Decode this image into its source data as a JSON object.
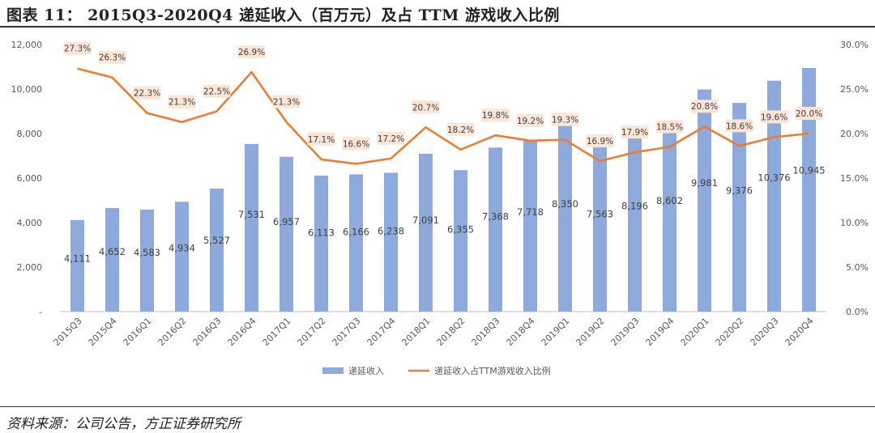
{
  "header": {
    "title": "图表 11： 2015Q3-2020Q4 递延收入（百万元）及占 TTM 游戏收入比例"
  },
  "footer": {
    "source": "资料来源：公司公告，方正证券研究所"
  },
  "chart_data": {
    "type": "bar+line",
    "categories": [
      "2015Q3",
      "2015Q4",
      "2016Q1",
      "2016Q2",
      "2016Q3",
      "2016Q4",
      "2017Q1",
      "2017Q2",
      "2017Q3",
      "2017Q4",
      "2018Q1",
      "2018Q2",
      "2018Q3",
      "2018Q4",
      "2019Q1",
      "2019Q2",
      "2019Q3",
      "2019Q4",
      "2020Q1",
      "2020Q2",
      "2020Q3",
      "2020Q4"
    ],
    "series": [
      {
        "name": "递延收入",
        "type": "bar",
        "axis": "left",
        "color": "#8EA9DB",
        "values": [
          4111,
          4652,
          4583,
          4934,
          5527,
          7531,
          6957,
          6113,
          6166,
          6238,
          7091,
          6355,
          7368,
          7718,
          8350,
          7563,
          8196,
          8602,
          9981,
          9376,
          10376,
          10945
        ],
        "labels": [
          "4,111",
          "4,652",
          "4,583",
          "4,934",
          "5,527",
          "7,531",
          "6,957",
          "6,113",
          "6,166",
          "6,238",
          "7,091",
          "6,355",
          "7,368",
          "7,718",
          "8,350",
          "7,563",
          "8,196",
          "8,602",
          "9,981",
          "9,376",
          "10,376",
          "10,945"
        ]
      },
      {
        "name": "递延收入占TTM游戏收入比例",
        "type": "line",
        "axis": "right",
        "color": "#ED7D31",
        "values": [
          27.3,
          26.3,
          22.3,
          21.3,
          22.5,
          26.9,
          21.3,
          17.1,
          16.6,
          17.2,
          20.7,
          18.2,
          19.8,
          19.2,
          19.3,
          16.9,
          17.9,
          18.5,
          20.8,
          18.6,
          19.6,
          20.0
        ],
        "labels": [
          "27.3%",
          "26.3%",
          "22.3%",
          "21.3%",
          "22.5%",
          "26.9%",
          "21.3%",
          "17.1%",
          "16.6%",
          "17.2%",
          "20.7%",
          "18.2%",
          "19.8%",
          "19.2%",
          "19.3%",
          "16.9%",
          "17.9%",
          "18.5%",
          "20.8%",
          "18.6%",
          "19.6%",
          "20.0%"
        ]
      }
    ],
    "left_axis": {
      "range": [
        0,
        12000
      ],
      "ticks": [
        0,
        2000,
        4000,
        6000,
        8000,
        10000,
        12000
      ],
      "tick_labels": [
        "-",
        "2,000",
        "4,000",
        "6,000",
        "8,000",
        "10,000",
        "12,000"
      ]
    },
    "right_axis": {
      "range": [
        0,
        30
      ],
      "ticks": [
        0,
        5,
        10,
        15,
        20,
        25,
        30
      ],
      "tick_labels": [
        "0.0%",
        "5.0%",
        "10.0%",
        "15.0%",
        "20.0%",
        "25.0%",
        "30.0%"
      ]
    },
    "grid": false,
    "legend": "bottom",
    "label_bg_color": "#FBE5D6",
    "axis_color": "#BFBFBF"
  }
}
